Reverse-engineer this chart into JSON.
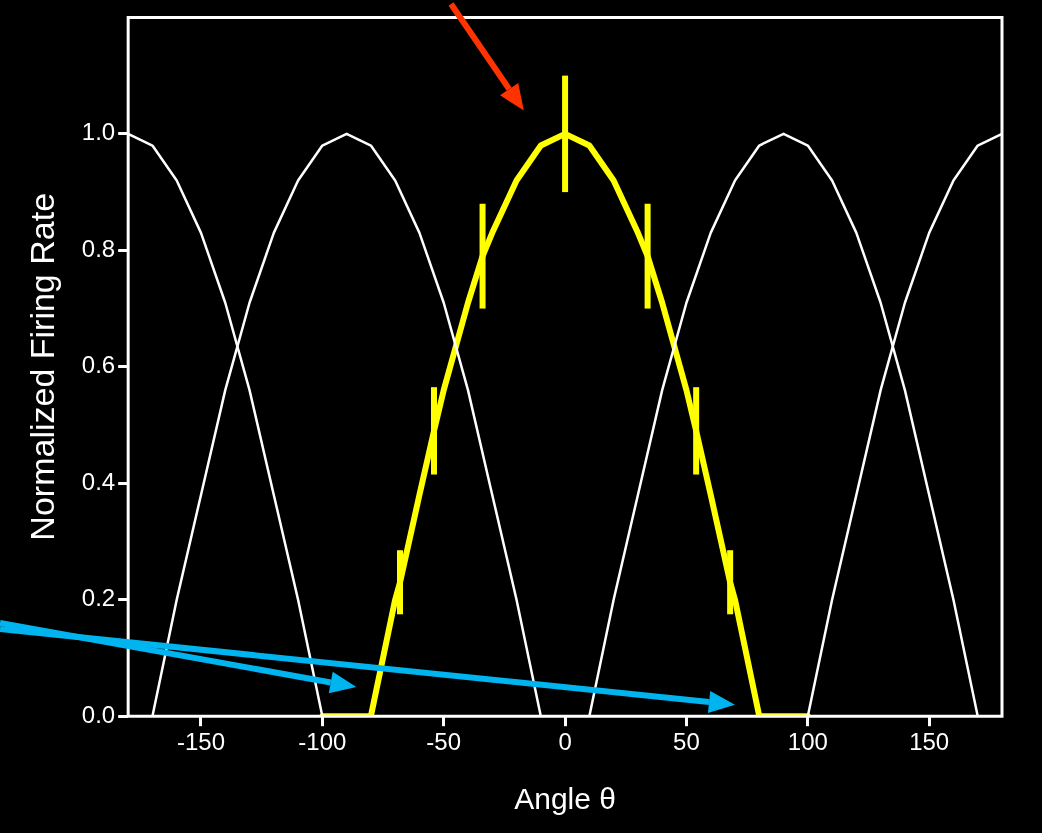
{
  "chart_data": {
    "type": "line",
    "xlabel": "Angle θ",
    "ylabel": "Normalized Firing Rate",
    "xlim": [
      -180,
      180
    ],
    "ylim": [
      0,
      1.2
    ],
    "xticks": [
      -150,
      -100,
      -50,
      0,
      50,
      100,
      150
    ],
    "yticks": [
      {
        "value": 0,
        "label": "0.0"
      },
      {
        "value": 0.2,
        "label": "0.2"
      },
      {
        "value": 0.4,
        "label": "0.4"
      },
      {
        "value": 0.6,
        "label": "0.6"
      },
      {
        "value": 0.8,
        "label": "0.8"
      },
      {
        "value": 1,
        "label": "1.0"
      }
    ],
    "grid": false,
    "legend": false,
    "marker": "none",
    "line_style": "solid",
    "series": [
      {
        "color": "#ffffff",
        "x": [
          -180,
          -170,
          -160,
          -150,
          -140,
          -130,
          -120,
          -110,
          -100
        ],
        "values": [
          1,
          0.98,
          0.92,
          0.83,
          0.71,
          0.56,
          0.38,
          0.2,
          0
        ]
      },
      {
        "color": "#ffffff",
        "x": [
          -170,
          -160,
          -150,
          -140,
          -130,
          -120,
          -110,
          -100,
          -90,
          -80,
          -70,
          -60,
          -50,
          -40,
          -30,
          -20,
          -10
        ],
        "values": [
          0,
          0.2,
          0.38,
          0.56,
          0.71,
          0.83,
          0.92,
          0.98,
          1,
          0.98,
          0.92,
          0.83,
          0.71,
          0.56,
          0.38,
          0.2,
          0
        ]
      },
      {
        "color": "#ffffff",
        "x": [
          10,
          20,
          30,
          40,
          50,
          60,
          70,
          80,
          90,
          100,
          110,
          120,
          130,
          140,
          150,
          160,
          170
        ],
        "values": [
          0,
          0.2,
          0.38,
          0.56,
          0.71,
          0.83,
          0.92,
          0.98,
          1,
          0.98,
          0.92,
          0.83,
          0.71,
          0.56,
          0.38,
          0.2,
          0
        ]
      },
      {
        "color": "#ffffff",
        "x": [
          100,
          110,
          120,
          130,
          140,
          150,
          160,
          170,
          180
        ],
        "values": [
          0,
          0.2,
          0.38,
          0.56,
          0.71,
          0.83,
          0.92,
          0.98,
          1
        ]
      },
      {
        "color": "#ffff00",
        "x": [
          -100,
          -90,
          -80,
          -70,
          -68,
          -60,
          -54,
          -50,
          -40,
          -34,
          -30,
          -20,
          -10,
          0,
          10,
          20,
          30,
          34,
          40,
          50,
          54,
          60,
          68,
          70,
          80,
          90,
          100
        ],
        "values": [
          0,
          0,
          0,
          0.2,
          0.23,
          0.38,
          0.49,
          0.56,
          0.71,
          0.79,
          0.83,
          0.92,
          0.98,
          1,
          0.98,
          0.92,
          0.83,
          0.79,
          0.71,
          0.56,
          0.49,
          0.38,
          0.23,
          0.2,
          0,
          0,
          0
        ],
        "errors": [
          null,
          null,
          null,
          null,
          0.055,
          null,
          0.075,
          null,
          null,
          0.09,
          null,
          null,
          null,
          0.1,
          null,
          null,
          null,
          0.09,
          null,
          null,
          0.075,
          null,
          0.055,
          null,
          null,
          null,
          null
        ]
      }
    ]
  }
}
